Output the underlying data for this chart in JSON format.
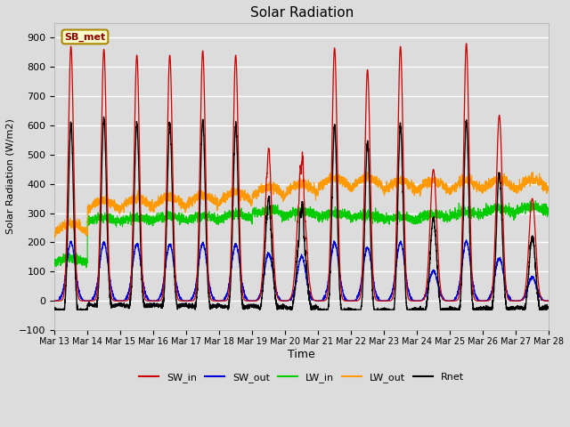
{
  "title": "Solar Radiation",
  "xlabel": "Time",
  "ylabel": "Solar Radiation (W/m2)",
  "ylim": [
    -100,
    950
  ],
  "yticks": [
    -100,
    0,
    100,
    200,
    300,
    400,
    500,
    600,
    700,
    800,
    900
  ],
  "date_labels": [
    "Mar 13",
    "Mar 14",
    "Mar 15",
    "Mar 16",
    "Mar 17",
    "Mar 18",
    "Mar 19",
    "Mar 20",
    "Mar 21",
    "Mar 22",
    "Mar 23",
    "Mar 24",
    "Mar 25",
    "Mar 26",
    "Mar 27",
    "Mar 28"
  ],
  "station_label": "SB_met",
  "colors": {
    "SW_in": "#cc0000",
    "SW_out": "#0000dd",
    "LW_in": "#00cc00",
    "LW_out": "#ff9900",
    "Rnet": "#000000"
  },
  "bg_color": "#dcdcdc",
  "plot_bg_color": "#dcdcdc",
  "fig_bg_color": "#dcdcdc"
}
